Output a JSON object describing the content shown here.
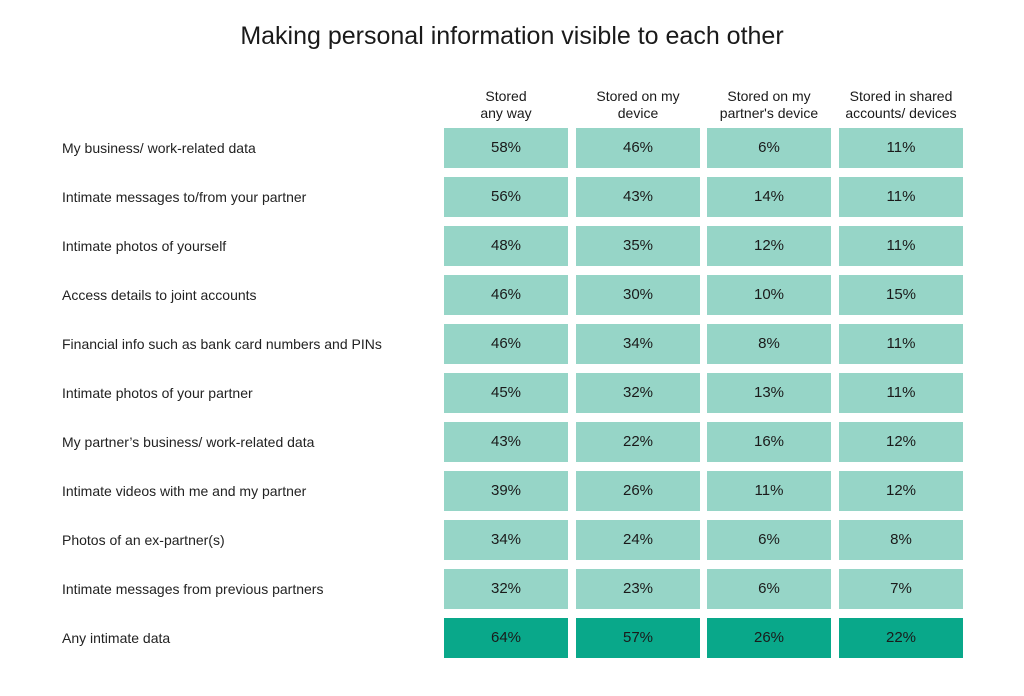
{
  "chart_data": {
    "type": "table",
    "title": "Making personal information visible to each other",
    "columns": [
      "Stored\nany way",
      "Stored on my\ndevice",
      "Stored on my\npartner's device",
      "Stored in shared\naccounts/ devices"
    ],
    "rows": [
      {
        "label": "My business/ work-related data",
        "values": [
          "58%",
          "46%",
          "6%",
          "11%"
        ]
      },
      {
        "label": "Intimate messages to/from your partner",
        "values": [
          "56%",
          "43%",
          "14%",
          "11%"
        ]
      },
      {
        "label": "Intimate photos of yourself",
        "values": [
          "48%",
          "35%",
          "12%",
          "11%"
        ]
      },
      {
        "label": "Access details to joint accounts",
        "values": [
          "46%",
          "30%",
          "10%",
          "15%"
        ]
      },
      {
        "label": "Financial info such as bank card numbers and PINs",
        "values": [
          "46%",
          "34%",
          "8%",
          "11%"
        ]
      },
      {
        "label": "Intimate photos of your partner",
        "values": [
          "45%",
          "32%",
          "13%",
          "11%"
        ]
      },
      {
        "label": "My partner’s business/ work-related data",
        "values": [
          "43%",
          "22%",
          "16%",
          "12%"
        ]
      },
      {
        "label": "Intimate videos with me and my partner",
        "values": [
          "39%",
          "26%",
          "11%",
          "12%"
        ]
      },
      {
        "label": "Photos of an ex-partner(s)",
        "values": [
          "34%",
          "24%",
          "6%",
          "8%"
        ]
      },
      {
        "label": "Intimate messages from previous partners",
        "values": [
          "32%",
          "23%",
          "6%",
          "7%"
        ]
      },
      {
        "label": "Any intimate data",
        "values": [
          "64%",
          "57%",
          "26%",
          "22%"
        ],
        "highlight": true
      }
    ],
    "colors": {
      "cell": "#96d5c7",
      "highlight_cell": "#09a88a"
    }
  }
}
